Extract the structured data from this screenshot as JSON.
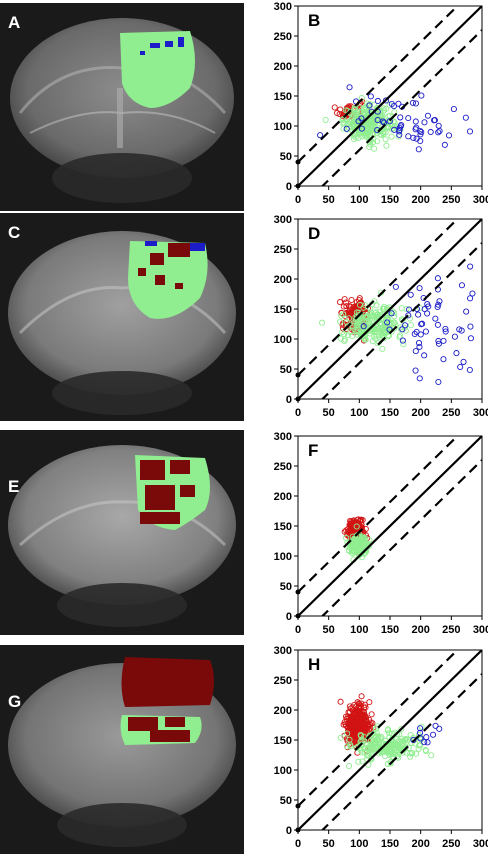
{
  "panels": [
    {
      "image_label": "A",
      "chart_label": "B"
    },
    {
      "image_label": "C",
      "chart_label": "D"
    },
    {
      "image_label": "E",
      "chart_label": "F"
    },
    {
      "image_label": "G",
      "chart_label": "H"
    }
  ],
  "colors": {
    "green": "#90ee90",
    "blue": "#1c1cc8",
    "darkred": "#7a0a0a",
    "red": "#d21414",
    "scan_bg": "#1a1a1a"
  },
  "chart_data": [
    {
      "type": "scatter",
      "panel": "B",
      "xlim": [
        0,
        300
      ],
      "ylim": [
        0,
        300
      ],
      "xticks": [
        0,
        50,
        100,
        150,
        200,
        250,
        300
      ],
      "yticks": [
        0,
        50,
        100,
        150,
        200,
        250,
        300
      ],
      "lines": [
        {
          "style": "solid",
          "slope": 1,
          "intercept": 0
        },
        {
          "style": "dashed",
          "slope": 1,
          "intercept": 40
        },
        {
          "style": "dashed",
          "slope": 1,
          "intercept": -40
        }
      ],
      "series": [
        {
          "color": "red",
          "cx": 85,
          "cy": 125,
          "sx": 10,
          "sy": 10,
          "n": 40
        },
        {
          "color": "green",
          "cx": 115,
          "cy": 105,
          "sx": 20,
          "sy": 14,
          "n": 260
        },
        {
          "color": "blue",
          "cx": 180,
          "cy": 110,
          "sx": 50,
          "sy": 20,
          "n": 60
        }
      ]
    },
    {
      "type": "scatter",
      "panel": "D",
      "xlim": [
        0,
        300
      ],
      "ylim": [
        0,
        300
      ],
      "xticks": [
        0,
        50,
        100,
        150,
        200,
        250,
        300
      ],
      "yticks": [
        0,
        50,
        100,
        150,
        200,
        250,
        300
      ],
      "lines": [
        {
          "style": "solid",
          "slope": 1,
          "intercept": 0
        },
        {
          "style": "dashed",
          "slope": 1,
          "intercept": 40
        },
        {
          "style": "dashed",
          "slope": 1,
          "intercept": -40
        }
      ],
      "series": [
        {
          "color": "red",
          "cx": 95,
          "cy": 140,
          "sx": 10,
          "sy": 12,
          "n": 140
        },
        {
          "color": "green",
          "cx": 120,
          "cy": 125,
          "sx": 26,
          "sy": 16,
          "n": 220
        },
        {
          "color": "blue",
          "cx": 220,
          "cy": 120,
          "sx": 45,
          "sy": 40,
          "n": 60
        }
      ]
    },
    {
      "type": "scatter",
      "panel": "F",
      "xlim": [
        0,
        300
      ],
      "ylim": [
        0,
        300
      ],
      "xticks": [
        0,
        50,
        100,
        150,
        200,
        250,
        300
      ],
      "yticks": [
        0,
        50,
        100,
        150,
        200,
        250,
        300
      ],
      "lines": [
        {
          "style": "solid",
          "slope": 1,
          "intercept": 0
        },
        {
          "style": "dashed",
          "slope": 1,
          "intercept": 40
        },
        {
          "style": "dashed",
          "slope": 1,
          "intercept": -40
        }
      ],
      "series": [
        {
          "color": "red",
          "cx": 95,
          "cy": 140,
          "sx": 7,
          "sy": 10,
          "n": 180
        },
        {
          "color": "green",
          "cx": 100,
          "cy": 118,
          "sx": 8,
          "sy": 9,
          "n": 150
        }
      ]
    },
    {
      "type": "scatter",
      "panel": "H",
      "xlim": [
        0,
        300
      ],
      "ylim": [
        0,
        300
      ],
      "xticks": [
        0,
        50,
        100,
        150,
        200,
        250,
        300
      ],
      "yticks": [
        0,
        50,
        100,
        150,
        200,
        250,
        300
      ],
      "lines": [
        {
          "style": "solid",
          "slope": 1,
          "intercept": 0
        },
        {
          "style": "dashed",
          "slope": 1,
          "intercept": 40
        },
        {
          "style": "dashed",
          "slope": 1,
          "intercept": -40
        }
      ],
      "series": [
        {
          "color": "red",
          "cx": 98,
          "cy": 175,
          "sx": 10,
          "sy": 18,
          "n": 320
        },
        {
          "color": "green",
          "cx": 140,
          "cy": 140,
          "sx": 30,
          "sy": 14,
          "n": 200
        },
        {
          "color": "blue",
          "cx": 205,
          "cy": 155,
          "sx": 10,
          "sy": 10,
          "n": 10
        }
      ]
    }
  ]
}
